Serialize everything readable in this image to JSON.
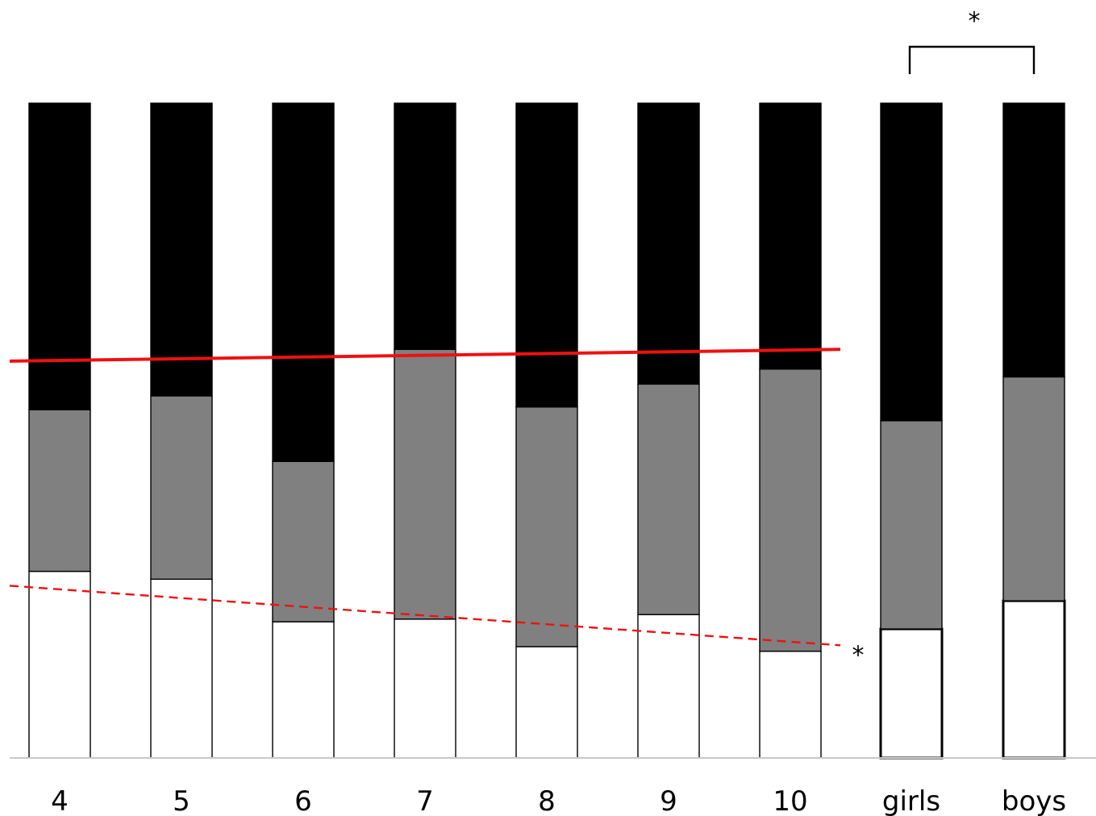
{
  "chart_data": {
    "type": "bar",
    "stacked": true,
    "normalized": true,
    "categories": [
      "4",
      "5",
      "6",
      "7",
      "8",
      "9",
      "10",
      "girls",
      "boys"
    ],
    "series": [
      {
        "values": [
          0.285,
          0.273,
          0.208,
          0.212,
          0.17,
          0.219,
          0.163,
          0.197,
          0.24
        ]
      },
      {
        "values": [
          0.247,
          0.28,
          0.245,
          0.412,
          0.366,
          0.352,
          0.431,
          0.318,
          0.342
        ]
      },
      {
        "values": [
          0.468,
          0.447,
          0.547,
          0.376,
          0.464,
          0.429,
          0.406,
          0.485,
          0.418
        ]
      }
    ],
    "ylim": [
      0,
      1
    ],
    "grid": false,
    "legend": "none",
    "colors": {
      "bottom": "#ffffff",
      "middle": "#808080",
      "top": "#000000",
      "trend": "#ee1111",
      "baseline": "#c8c8c8"
    },
    "trendlines": [
      {
        "style": "solid",
        "from_category": "4",
        "to_category": "10",
        "y_start": 0.606,
        "y_end": 0.624
      },
      {
        "style": "dashed",
        "from_category": "4",
        "to_category": "10",
        "y_start": 0.263,
        "y_end": 0.172
      }
    ],
    "annotations": {
      "dashed_trend_marker": "*",
      "group_comparison": {
        "between": [
          "girls",
          "boys"
        ],
        "label": "*"
      }
    }
  }
}
